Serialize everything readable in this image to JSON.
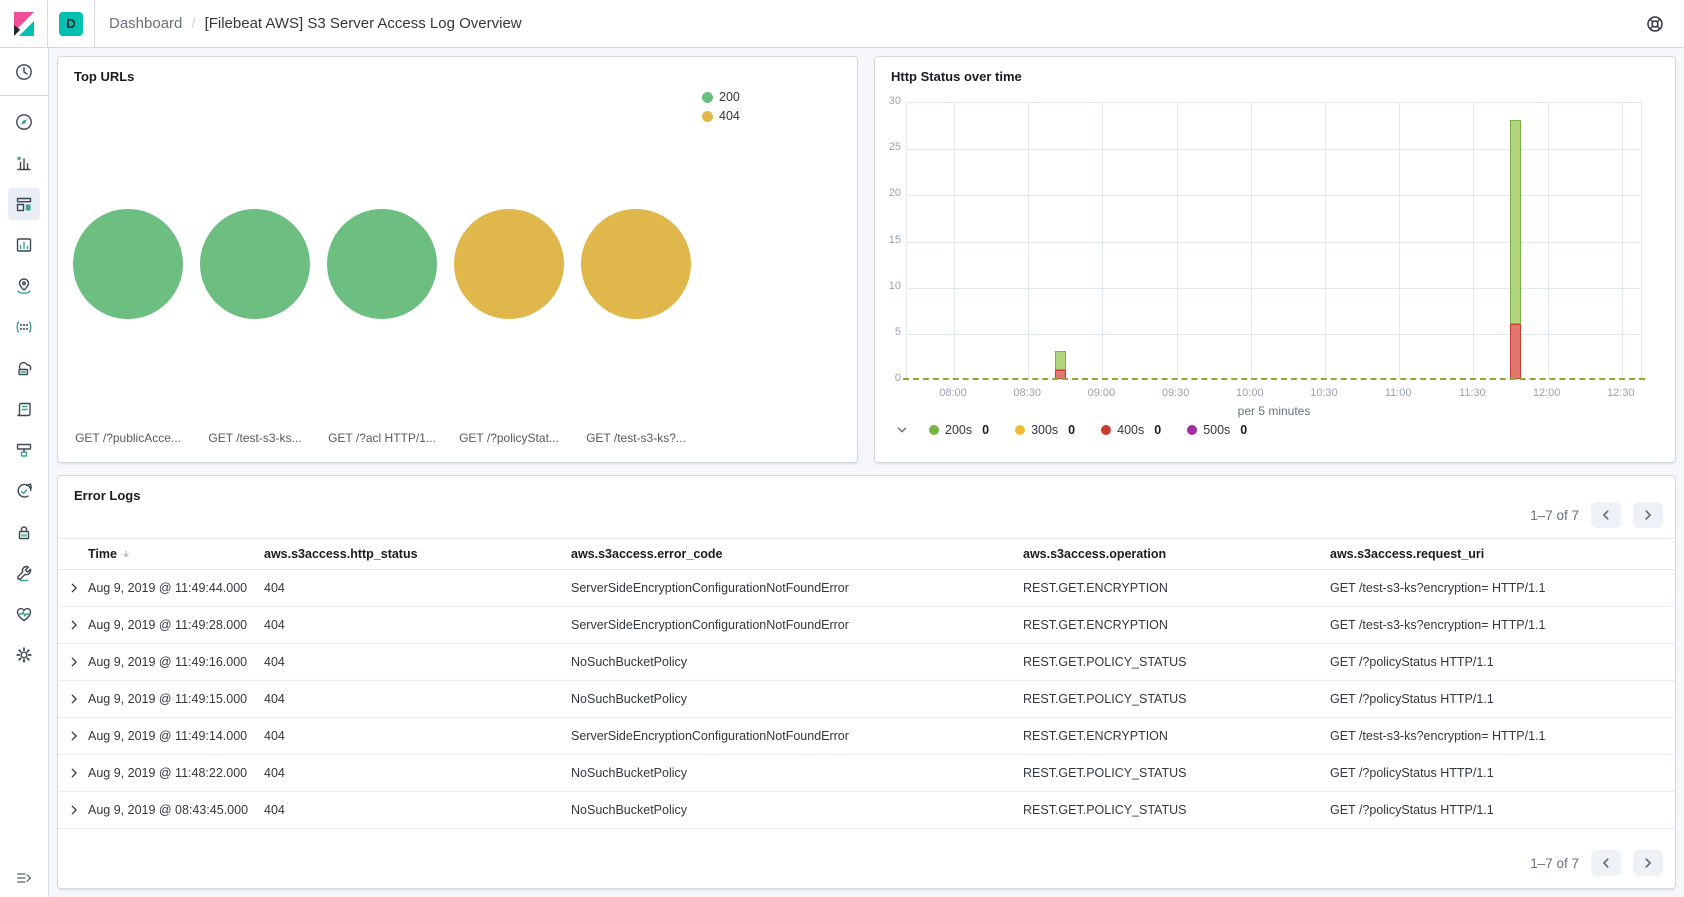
{
  "header": {
    "logo": "kibana-logo",
    "space_badge": "D",
    "breadcrumbs": [
      {
        "label": "Dashboard"
      },
      {
        "label": "[Filebeat AWS] S3 Server Access Log Overview"
      }
    ],
    "breadcrumb_separator": "/",
    "help_icon": "help-ring"
  },
  "sidebar": {
    "active_item": "dashboard",
    "items": [
      "recently-viewed",
      "discover",
      "visualize",
      "dashboard",
      "canvas",
      "maps",
      "machine-learning",
      "metrics",
      "logs",
      "apm",
      "uptime",
      "siem",
      "dev-tools",
      "stack-monitoring",
      "management"
    ],
    "collapse_toggle": "menu-right"
  },
  "panels": {
    "top_urls": {
      "title": "Top URLs"
    },
    "http_status": {
      "title": "Http Status over time"
    },
    "error_logs": {
      "title": "Error Logs",
      "pagination_label": "1–7 of 7",
      "columns": [
        "Time",
        "aws.s3access.http_status",
        "aws.s3access.error_code",
        "aws.s3access.operation",
        "aws.s3access.request_uri"
      ],
      "sorted_column": "Time",
      "sort_direction": "desc",
      "rows": [
        {
          "time": "Aug 9, 2019 @ 11:49:44.000",
          "http_status": "404",
          "error_code": "ServerSideEncryptionConfigurationNotFoundError",
          "operation": "REST.GET.ENCRYPTION",
          "request_uri": "GET /test-s3-ks?encryption= HTTP/1.1"
        },
        {
          "time": "Aug 9, 2019 @ 11:49:28.000",
          "http_status": "404",
          "error_code": "ServerSideEncryptionConfigurationNotFoundError",
          "operation": "REST.GET.ENCRYPTION",
          "request_uri": "GET /test-s3-ks?encryption= HTTP/1.1"
        },
        {
          "time": "Aug 9, 2019 @ 11:49:16.000",
          "http_status": "404",
          "error_code": "NoSuchBucketPolicy",
          "operation": "REST.GET.POLICY_STATUS",
          "request_uri": "GET /?policyStatus HTTP/1.1"
        },
        {
          "time": "Aug 9, 2019 @ 11:49:15.000",
          "http_status": "404",
          "error_code": "NoSuchBucketPolicy",
          "operation": "REST.GET.POLICY_STATUS",
          "request_uri": "GET /?policyStatus HTTP/1.1"
        },
        {
          "time": "Aug 9, 2019 @ 11:49:14.000",
          "http_status": "404",
          "error_code": "ServerSideEncryptionConfigurationNotFoundError",
          "operation": "REST.GET.ENCRYPTION",
          "request_uri": "GET /test-s3-ks?encryption= HTTP/1.1"
        },
        {
          "time": "Aug 9, 2019 @ 11:48:22.000",
          "http_status": "404",
          "error_code": "NoSuchBucketPolicy",
          "operation": "REST.GET.POLICY_STATUS",
          "request_uri": "GET /?policyStatus HTTP/1.1"
        },
        {
          "time": "Aug 9, 2019 @ 08:43:45.000",
          "http_status": "404",
          "error_code": "NoSuchBucketPolicy",
          "operation": "REST.GET.POLICY_STATUS",
          "request_uri": "GET /?policyStatus HTTP/1.1"
        }
      ]
    }
  },
  "chart_data": [
    {
      "type": "bubble",
      "title": "Top URLs",
      "legend_position": "top-right",
      "legend": [
        {
          "label": "200",
          "color": "#6dbe81"
        },
        {
          "label": "404",
          "color": "#e0b74a"
        }
      ],
      "bubbles": [
        {
          "label": "GET /?publicAcce...",
          "series": "200",
          "color": "#6dbe81"
        },
        {
          "label": "GET /test-s3-ks...",
          "series": "200",
          "color": "#6dbe81"
        },
        {
          "label": "GET /?acl HTTP/1...",
          "series": "200",
          "color": "#6dbe81"
        },
        {
          "label": "GET /?policyStat...",
          "series": "404",
          "color": "#e0b74a"
        },
        {
          "label": "GET /test-s3-ks?...",
          "series": "404",
          "color": "#e0b74a"
        }
      ]
    },
    {
      "type": "bar",
      "stacked": true,
      "title": "Http Status over time",
      "xlabel": "per 5 minutes",
      "x_ticks": [
        "08:00",
        "08:30",
        "09:00",
        "09:30",
        "10:00",
        "10:30",
        "11:00",
        "11:30",
        "12:00",
        "12:30"
      ],
      "y_ticks": [
        0,
        5,
        10,
        15,
        20,
        25,
        30
      ],
      "ylim": [
        0,
        30
      ],
      "grid": true,
      "legend_position": "bottom",
      "zero_line": {
        "style": "dashed",
        "color": "#9aa431"
      },
      "series": [
        {
          "name": "200s",
          "legend_value": "0",
          "color": "#77b542",
          "bar_fill": "#afd47c"
        },
        {
          "name": "300s",
          "legend_value": "0",
          "color": "#f0bc31",
          "bar_fill": "#f6dc92"
        },
        {
          "name": "400s",
          "legend_value": "0",
          "color": "#ca3b30",
          "bar_fill": "#e0786e"
        },
        {
          "name": "500s",
          "legend_value": "0",
          "color": "#a42ca4",
          "bar_fill": "#cf92cf"
        }
      ],
      "bars": [
        {
          "time": "08:43",
          "segments": [
            {
              "series": "400s",
              "value": 1
            },
            {
              "series": "200s",
              "value": 2
            }
          ]
        },
        {
          "time": "11:47",
          "segments": [
            {
              "series": "400s",
              "value": 6
            },
            {
              "series": "200s",
              "value": 22
            }
          ]
        }
      ]
    }
  ]
}
